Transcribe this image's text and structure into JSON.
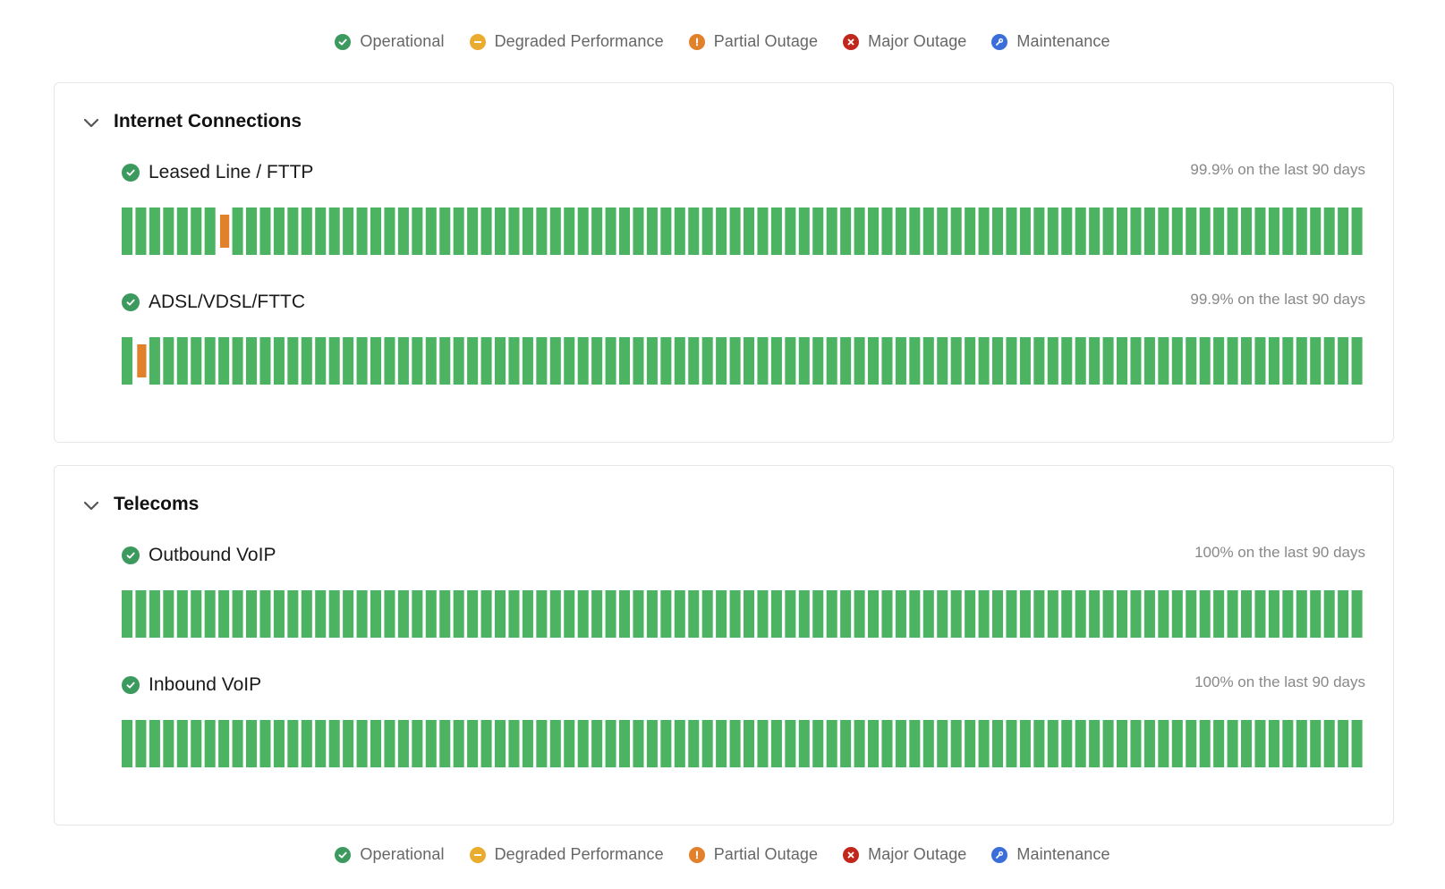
{
  "legend": [
    {
      "label": "Operational",
      "icon": "check-circle-icon",
      "color": "#3d9a5f"
    },
    {
      "label": "Degraded Performance",
      "icon": "minus-circle-icon",
      "color": "#e9ac2e"
    },
    {
      "label": "Partial Outage",
      "icon": "exclamation-circle-icon",
      "color": "#e1812c"
    },
    {
      "label": "Major Outage",
      "icon": "x-circle-icon",
      "color": "#c0281c"
    },
    {
      "label": "Maintenance",
      "icon": "wrench-circle-icon",
      "color": "#3b6ed8"
    }
  ],
  "colors": {
    "operational_bar": "#4cb363",
    "partial_bar": "#e1812c"
  },
  "groups": [
    {
      "title": "Internet Connections",
      "components": [
        {
          "name": "Leased Line / FTTP",
          "uptime": "99.9% on the last 90 days",
          "days": 90,
          "incidents": [
            {
              "day_index": 7,
              "status": "partial"
            }
          ]
        },
        {
          "name": "ADSL/VDSL/FTTC",
          "uptime": "99.9% on the last 90 days",
          "days": 90,
          "incidents": [
            {
              "day_index": 1,
              "status": "partial"
            }
          ]
        }
      ]
    },
    {
      "title": "Telecoms",
      "components": [
        {
          "name": "Outbound VoIP",
          "uptime": "100% on the last 90 days",
          "days": 90,
          "incidents": []
        },
        {
          "name": "Inbound VoIP",
          "uptime": "100% on the last 90 days",
          "days": 90,
          "incidents": []
        }
      ]
    }
  ]
}
